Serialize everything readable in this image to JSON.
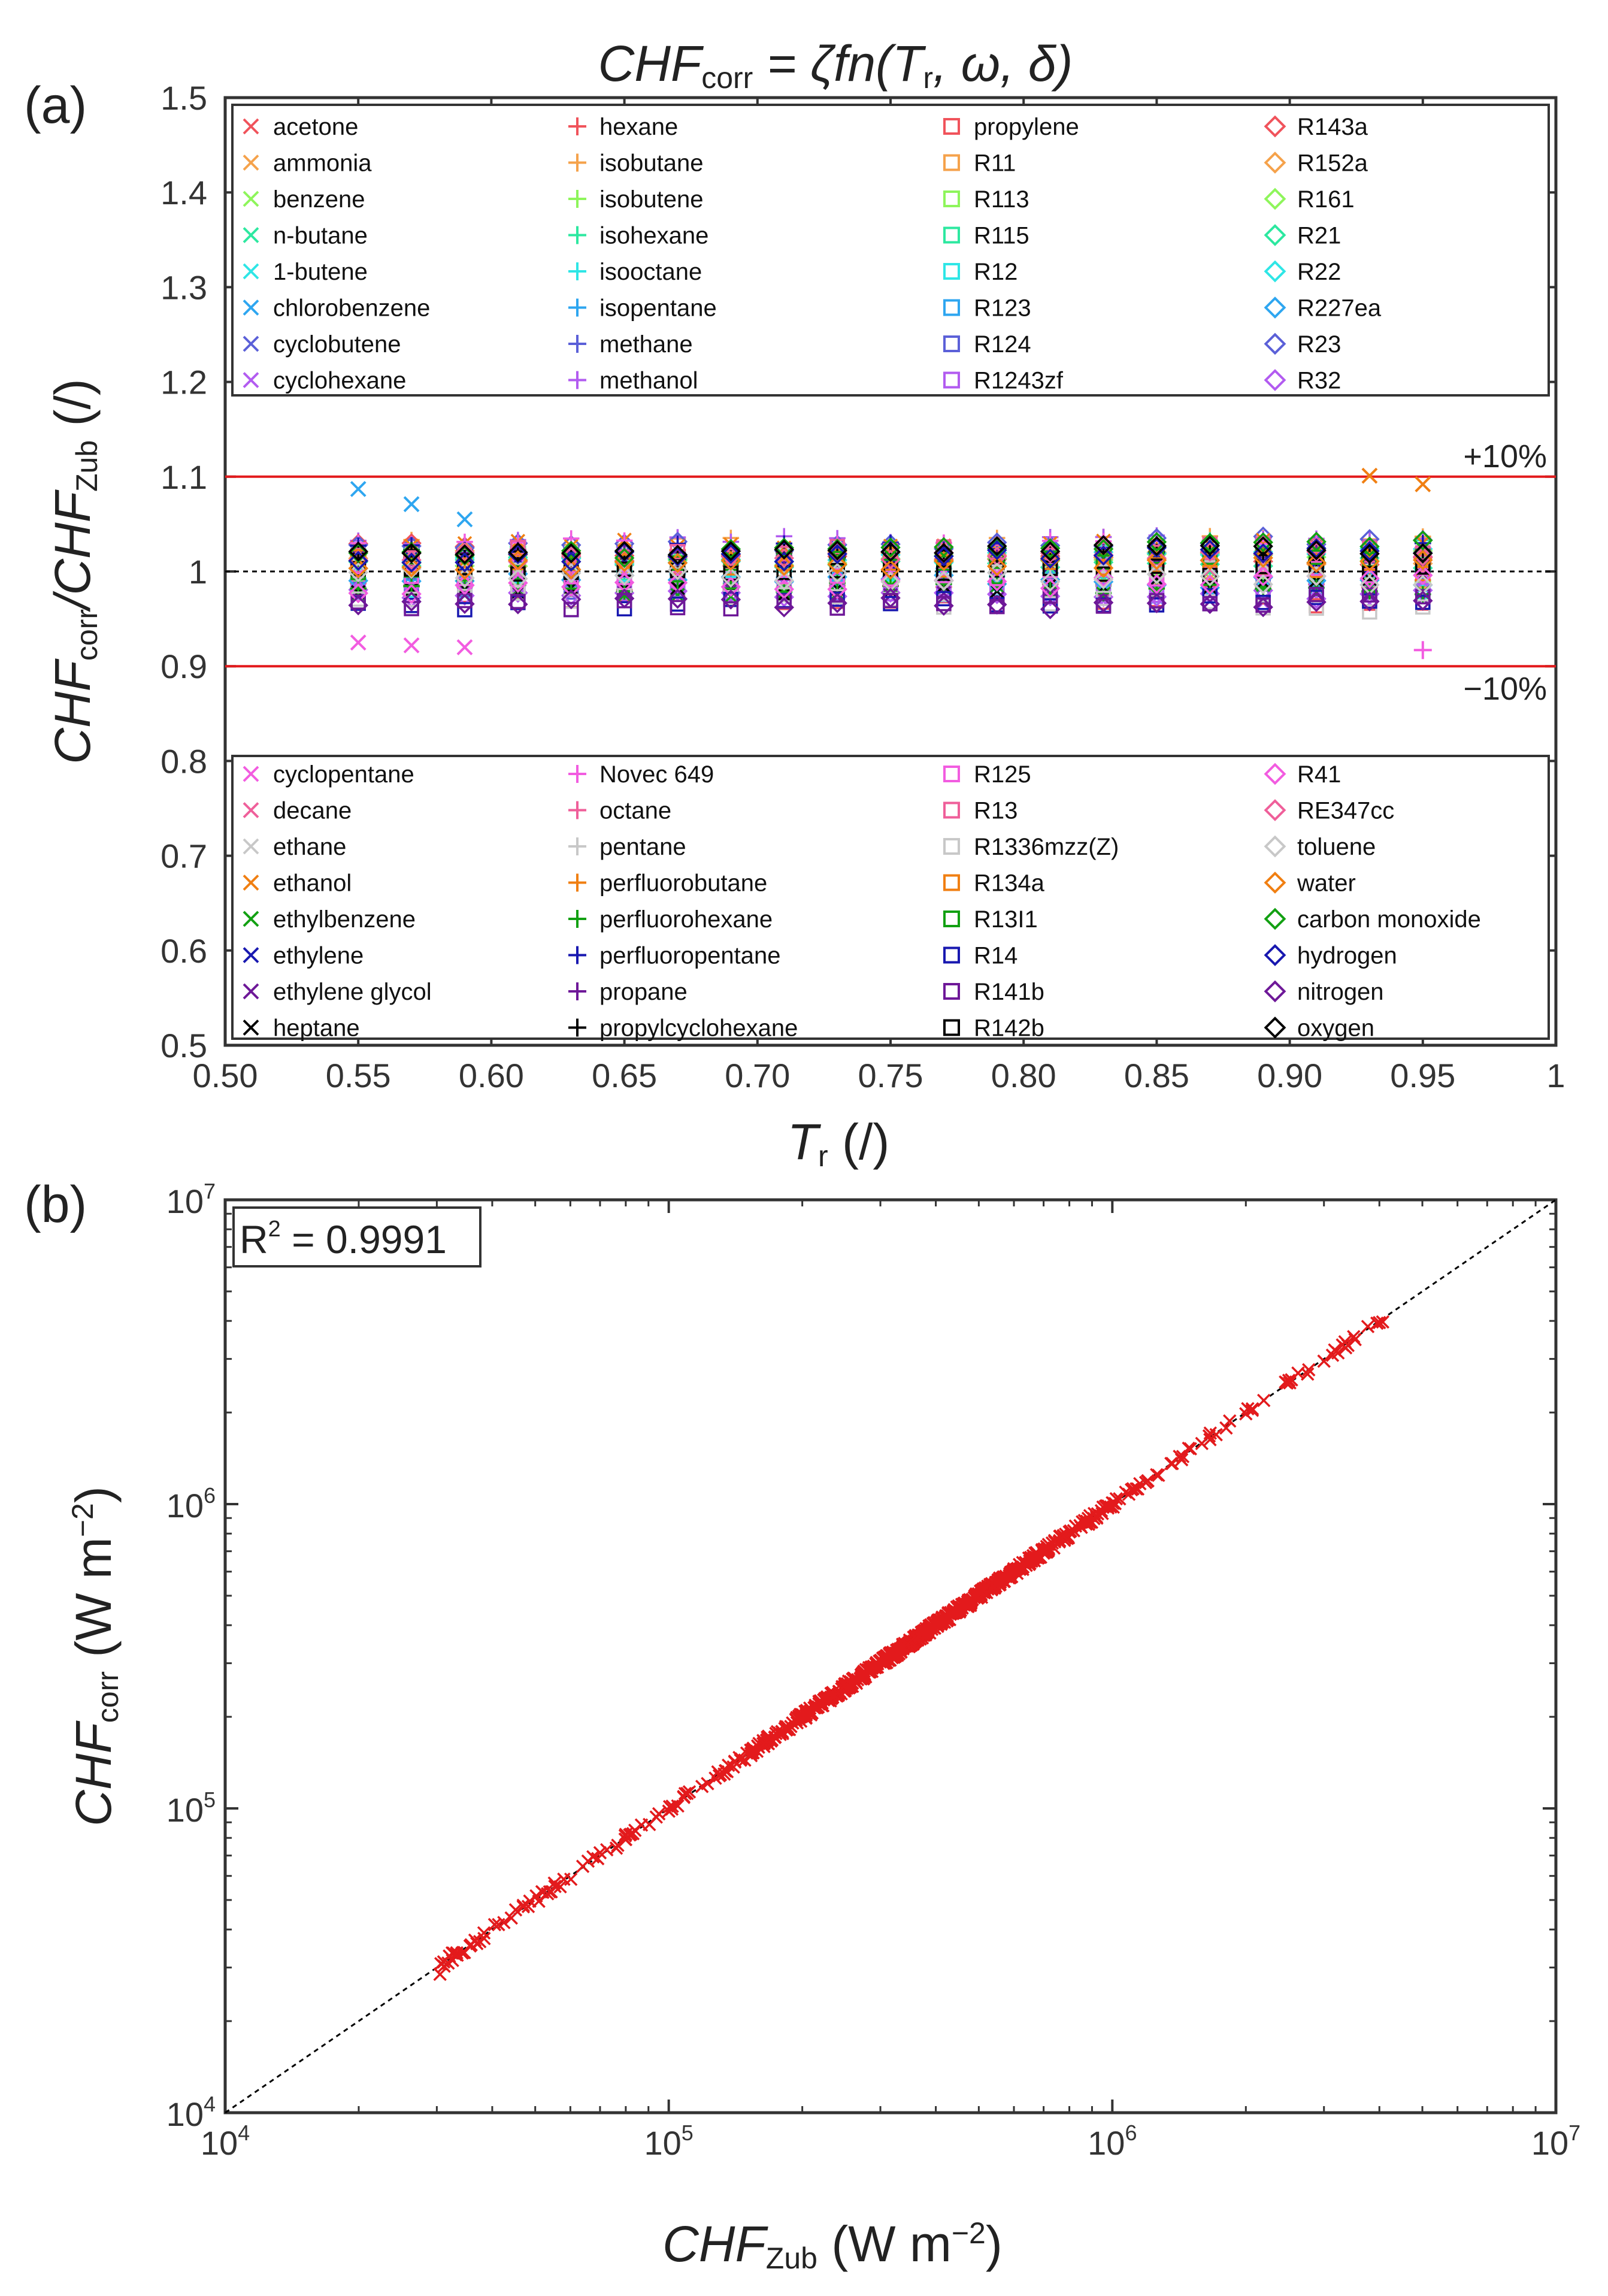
{
  "chart_data": [
    {
      "id": "a",
      "panel_label": "(a)",
      "type": "scatter",
      "title": {
        "main": "CHF",
        "sub": "corr",
        "rest": " = ζfn(T",
        "sub2": "r",
        "rest2": ", ω, δ)"
      },
      "xlabel": {
        "main": "T",
        "sub": "r",
        "rest": " (/)"
      },
      "ylabel": {
        "p1": "CHF",
        "s1": "corr",
        "p2": "/CHF",
        "s2": "Zub",
        "p3": " (/)"
      },
      "xlim": [
        0.5,
        1.0
      ],
      "ylim": [
        0.5,
        1.5
      ],
      "xticks": [
        "0.50",
        "0.55",
        "0.60",
        "0.65",
        "0.70",
        "0.75",
        "0.80",
        "0.85",
        "0.90",
        "0.95",
        "1"
      ],
      "yticks": [
        "0.5",
        "0.6",
        "0.7",
        "0.8",
        "0.9",
        "1",
        "1.1",
        "1.2",
        "1.3",
        "1.4",
        "1.5"
      ],
      "reference_lines": [
        {
          "y": 1.1,
          "label": "+10%",
          "color": "#e31a1c"
        },
        {
          "y": 1.0,
          "label": "",
          "color": "#000000"
        },
        {
          "y": 0.9,
          "label": "−10%",
          "color": "#e31a1c"
        }
      ],
      "legend_top": [
        {
          "name": "acetone",
          "marker": "x",
          "color": "#f0535b"
        },
        {
          "name": "ammonia",
          "marker": "x",
          "color": "#f5a24b"
        },
        {
          "name": "benzene",
          "marker": "x",
          "color": "#8ef55b"
        },
        {
          "name": "n-butane",
          "marker": "x",
          "color": "#2de8a0"
        },
        {
          "name": "1-butene",
          "marker": "x",
          "color": "#2ee6e6"
        },
        {
          "name": "chlorobenzene",
          "marker": "x",
          "color": "#2ea6f0"
        },
        {
          "name": "cyclobutene",
          "marker": "x",
          "color": "#5b60d8"
        },
        {
          "name": "cyclohexane",
          "marker": "x",
          "color": "#b25bf0"
        },
        {
          "name": "hexane",
          "marker": "+",
          "color": "#f0535b"
        },
        {
          "name": "isobutane",
          "marker": "+",
          "color": "#f5a24b"
        },
        {
          "name": "isobutene",
          "marker": "+",
          "color": "#8ef55b"
        },
        {
          "name": "isohexane",
          "marker": "+",
          "color": "#2de8a0"
        },
        {
          "name": "isooctane",
          "marker": "+",
          "color": "#2ee6e6"
        },
        {
          "name": "isopentane",
          "marker": "+",
          "color": "#2ea6f0"
        },
        {
          "name": "methane",
          "marker": "+",
          "color": "#5b60d8"
        },
        {
          "name": "methanol",
          "marker": "+",
          "color": "#b25bf0"
        },
        {
          "name": "propylene",
          "marker": "s",
          "color": "#f0535b"
        },
        {
          "name": "R11",
          "marker": "s",
          "color": "#f5a24b"
        },
        {
          "name": "R113",
          "marker": "s",
          "color": "#8ef55b"
        },
        {
          "name": "R115",
          "marker": "s",
          "color": "#2de8a0"
        },
        {
          "name": "R12",
          "marker": "s",
          "color": "#2ee6e6"
        },
        {
          "name": "R123",
          "marker": "s",
          "color": "#2ea6f0"
        },
        {
          "name": "R124",
          "marker": "s",
          "color": "#5b60d8"
        },
        {
          "name": "R1243zf",
          "marker": "s",
          "color": "#b25bf0"
        },
        {
          "name": "R143a",
          "marker": "d",
          "color": "#f0535b"
        },
        {
          "name": "R152a",
          "marker": "d",
          "color": "#f5a24b"
        },
        {
          "name": "R161",
          "marker": "d",
          "color": "#8ef55b"
        },
        {
          "name": "R21",
          "marker": "d",
          "color": "#2de8a0"
        },
        {
          "name": "R22",
          "marker": "d",
          "color": "#2ee6e6"
        },
        {
          "name": "R227ea",
          "marker": "d",
          "color": "#2ea6f0"
        },
        {
          "name": "R23",
          "marker": "d",
          "color": "#5b60d8"
        },
        {
          "name": "R32",
          "marker": "d",
          "color": "#b25bf0"
        }
      ],
      "legend_bottom": [
        {
          "name": "cyclopentane",
          "marker": "x",
          "color": "#f25ce0"
        },
        {
          "name": "decane",
          "marker": "x",
          "color": "#ef5f9a"
        },
        {
          "name": "ethane",
          "marker": "x",
          "color": "#c8c8c8"
        },
        {
          "name": "ethanol",
          "marker": "x",
          "color": "#f07f12"
        },
        {
          "name": "ethylbenzene",
          "marker": "x",
          "color": "#12a012"
        },
        {
          "name": "ethylene",
          "marker": "x",
          "color": "#1818b0"
        },
        {
          "name": "ethylene glycol",
          "marker": "x",
          "color": "#6e1898"
        },
        {
          "name": "heptane",
          "marker": "x",
          "color": "#000000"
        },
        {
          "name": "Novec 649",
          "marker": "+",
          "color": "#f25ce0"
        },
        {
          "name": "octane",
          "marker": "+",
          "color": "#ef5f9a"
        },
        {
          "name": "pentane",
          "marker": "+",
          "color": "#c8c8c8"
        },
        {
          "name": "perfluorobutane",
          "marker": "+",
          "color": "#f07f12"
        },
        {
          "name": "perfluorohexane",
          "marker": "+",
          "color": "#12a012"
        },
        {
          "name": "perfluoropentane",
          "marker": "+",
          "color": "#1818b0"
        },
        {
          "name": "propane",
          "marker": "+",
          "color": "#6e1898"
        },
        {
          "name": "propylcyclohexane",
          "marker": "+",
          "color": "#000000"
        },
        {
          "name": "R125",
          "marker": "s",
          "color": "#f25ce0"
        },
        {
          "name": "R13",
          "marker": "s",
          "color": "#ef5f9a"
        },
        {
          "name": "R1336mzz(Z)",
          "marker": "s",
          "color": "#c8c8c8"
        },
        {
          "name": "R134a",
          "marker": "s",
          "color": "#f07f12"
        },
        {
          "name": "R13I1",
          "marker": "s",
          "color": "#12a012"
        },
        {
          "name": "R14",
          "marker": "s",
          "color": "#1818b0"
        },
        {
          "name": "R141b",
          "marker": "s",
          "color": "#6e1898"
        },
        {
          "name": "R142b",
          "marker": "s",
          "color": "#000000"
        },
        {
          "name": "R41",
          "marker": "d",
          "color": "#f25ce0"
        },
        {
          "name": "RE347cc",
          "marker": "d",
          "color": "#ef5f9a"
        },
        {
          "name": "toluene",
          "marker": "d",
          "color": "#c8c8c8"
        },
        {
          "name": "water",
          "marker": "d",
          "color": "#f07f12"
        },
        {
          "name": "carbon monoxide",
          "marker": "d",
          "color": "#12a012"
        },
        {
          "name": "hydrogen",
          "marker": "d",
          "color": "#1818b0"
        },
        {
          "name": "nitrogen",
          "marker": "d",
          "color": "#6e1898"
        },
        {
          "name": "oxygen",
          "marker": "d",
          "color": "#000000"
        }
      ],
      "tr_values": [
        0.55,
        0.57,
        0.59,
        0.61,
        0.63,
        0.65,
        0.67,
        0.69,
        0.71,
        0.73,
        0.75,
        0.77,
        0.79,
        0.81,
        0.83,
        0.85,
        0.87,
        0.89,
        0.91,
        0.93,
        0.95
      ],
      "highlighted_points": [
        {
          "series": "chlorobenzene",
          "x": 0.55,
          "y": 1.087
        },
        {
          "series": "chlorobenzene",
          "x": 0.57,
          "y": 1.071
        },
        {
          "series": "chlorobenzene",
          "x": 0.59,
          "y": 1.055
        },
        {
          "series": "cyclopentane",
          "x": 0.55,
          "y": 0.925
        },
        {
          "series": "cyclopentane",
          "x": 0.57,
          "y": 0.922
        },
        {
          "series": "cyclopentane",
          "x": 0.59,
          "y": 0.92
        },
        {
          "series": "ethanol",
          "x": 0.93,
          "y": 1.101
        },
        {
          "series": "ethanol",
          "x": 0.95,
          "y": 1.092
        },
        {
          "series": "Novec 649",
          "x": 0.95,
          "y": 0.917
        }
      ]
    },
    {
      "id": "b",
      "panel_label": "(b)",
      "type": "scatter",
      "scale": "log-log",
      "xlabel": {
        "main": "CHF",
        "sub": "Zub",
        "rest": " (W m",
        "sup": "−2",
        "end": ")"
      },
      "ylabel": {
        "main": "CHF",
        "sub": "corr",
        "rest": " (W m",
        "sup": "−2",
        "end": ")"
      },
      "xlim": [
        10000,
        10000000
      ],
      "ylim": [
        10000,
        10000000
      ],
      "xticks": [
        {
          "base": "10",
          "exp": "4"
        },
        {
          "base": "10",
          "exp": "5"
        },
        {
          "base": "10",
          "exp": "6"
        },
        {
          "base": "10",
          "exp": "7"
        }
      ],
      "yticks": [
        {
          "base": "10",
          "exp": "4"
        },
        {
          "base": "10",
          "exp": "5"
        },
        {
          "base": "10",
          "exp": "6"
        },
        {
          "base": "10",
          "exp": "7"
        }
      ],
      "annotation": {
        "text": "R",
        "sup": "2",
        "rest": " = 0.9991"
      },
      "reference_line": "y = x",
      "series_color": "#e31a1c",
      "marker": "x",
      "data_range": {
        "x_min": 30000,
        "x_max": 4200000
      },
      "sample_points": [
        [
          30500,
          28500
        ],
        [
          32500,
          33500
        ],
        [
          37500,
          36500
        ],
        [
          40500,
          41500
        ],
        [
          47000,
          47500
        ],
        [
          52000,
          53000
        ],
        [
          58000,
          58500
        ],
        [
          64000,
          64500
        ],
        [
          70000,
          71500
        ],
        [
          80000,
          79000
        ],
        [
          95000,
          96000
        ],
        [
          110000,
          112000
        ],
        [
          130000,
          128000
        ],
        [
          150000,
          152000
        ],
        [
          180000,
          179000
        ],
        [
          200000,
          203000
        ],
        [
          250000,
          248000
        ],
        [
          300000,
          305000
        ],
        [
          350000,
          348000
        ],
        [
          420000,
          425000
        ],
        [
          500000,
          495000
        ],
        [
          600000,
          610000
        ],
        [
          700000,
          690000
        ],
        [
          800000,
          810000
        ],
        [
          1000000,
          1010000
        ],
        [
          1200000,
          1190000
        ],
        [
          1500000,
          1520000
        ],
        [
          2000000,
          1980000
        ],
        [
          2500000,
          2550000
        ],
        [
          3000000,
          2950000
        ],
        [
          3500000,
          3550000
        ],
        [
          4000000,
          3950000
        ]
      ]
    }
  ]
}
